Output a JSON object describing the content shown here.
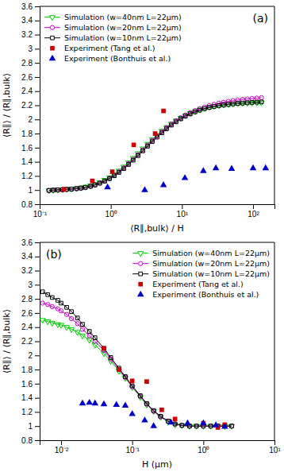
{
  "chart_data": [
    {
      "type": "line",
      "log": "x",
      "xlabel": "⟨R∥,bulk⟩ / H",
      "ylabel": "⟨R∥⟩ / ⟨R∥,bulk⟩",
      "annotations": [
        "(a)"
      ],
      "legend": "upper left",
      "xlim": [
        0.1,
        200
      ],
      "xticks": [
        {
          "value": 0.1,
          "label": "10⁻¹"
        },
        {
          "value": 1,
          "label": "10⁰"
        },
        {
          "value": 10,
          "label": "10¹"
        },
        {
          "value": 100,
          "label": "10²"
        }
      ],
      "ylim": [
        0.8,
        3.6
      ],
      "yticks": [
        0.8,
        1,
        1.2,
        1.4,
        1.6,
        1.8,
        2,
        2.2,
        2.4,
        2.6,
        2.8,
        3,
        3.2,
        3.4,
        3.6
      ],
      "series": [
        {
          "name": "Simulation (w=40nm L=22μm)",
          "type": "line",
          "marker": "triangle-down",
          "color": "#00cc00",
          "x": [
            0.135,
            0.155,
            0.18,
            0.21,
            0.24,
            0.28,
            0.33,
            0.38,
            0.44,
            0.52,
            0.6,
            0.7,
            0.82,
            0.96,
            1.12,
            1.3,
            1.52,
            1.78,
            2.06,
            2.42,
            2.82,
            3.29,
            3.83,
            4.47,
            5.22,
            6.08,
            7.09,
            8.27,
            9.64,
            11.2,
            13.1,
            15.3,
            17.8,
            20.8,
            24.2,
            28.3,
            33.0,
            38.5,
            44.9,
            52.3,
            61.0,
            71.1,
            82.9,
            96.7,
            113,
            131
          ],
          "values": [
            0.995,
            1.0,
            1.004,
            1.008,
            1.013,
            1.018,
            1.025,
            1.034,
            1.046,
            1.063,
            1.083,
            1.11,
            1.142,
            1.18,
            1.223,
            1.273,
            1.329,
            1.39,
            1.453,
            1.519,
            1.586,
            1.652,
            1.717,
            1.778,
            1.836,
            1.889,
            1.938,
            1.982,
            2.021,
            2.056,
            2.086,
            2.113,
            2.136,
            2.156,
            2.172,
            2.186,
            2.197,
            2.207,
            2.214,
            2.22,
            2.225,
            2.229,
            2.232,
            2.235,
            2.237,
            2.239
          ]
        },
        {
          "name": "Simulation (w=20nm L=22μm)",
          "type": "line",
          "marker": "circle",
          "color": "#cc00cc",
          "x": [
            0.135,
            0.155,
            0.18,
            0.21,
            0.24,
            0.28,
            0.33,
            0.38,
            0.44,
            0.52,
            0.6,
            0.7,
            0.82,
            0.96,
            1.12,
            1.3,
            1.52,
            1.78,
            2.06,
            2.42,
            2.82,
            3.29,
            3.83,
            4.47,
            5.22,
            6.08,
            7.09,
            8.27,
            9.64,
            11.2,
            13.1,
            15.3,
            17.8,
            20.8,
            24.2,
            28.3,
            33.0,
            38.5,
            44.9,
            52.3,
            61.0,
            71.1,
            82.9,
            96.7,
            113,
            131
          ],
          "values": [
            0.995,
            1.0,
            1.003,
            1.007,
            1.011,
            1.015,
            1.022,
            1.03,
            1.04,
            1.056,
            1.076,
            1.102,
            1.132,
            1.168,
            1.21,
            1.259,
            1.314,
            1.374,
            1.436,
            1.502,
            1.57,
            1.637,
            1.703,
            1.767,
            1.827,
            1.883,
            1.935,
            1.982,
            2.024,
            2.062,
            2.096,
            2.126,
            2.153,
            2.176,
            2.196,
            2.214,
            2.23,
            2.244,
            2.256,
            2.266,
            2.275,
            2.283,
            2.29,
            2.296,
            2.302,
            2.308
          ]
        },
        {
          "name": "Simulation (w=10nm L=22μm)",
          "type": "line",
          "marker": "square",
          "color": "#000000",
          "x": [
            0.135,
            0.155,
            0.18,
            0.21,
            0.24,
            0.28,
            0.33,
            0.38,
            0.44,
            0.52,
            0.6,
            0.7,
            0.82,
            0.96,
            1.12,
            1.3,
            1.52,
            1.78,
            2.06,
            2.42,
            2.82,
            3.29,
            3.83,
            4.47,
            5.22,
            6.08,
            7.09,
            8.27,
            9.64,
            11.2,
            13.1,
            15.3,
            17.8,
            20.8,
            24.2,
            28.3,
            33.0,
            38.5,
            44.9,
            52.3,
            61.0,
            71.1,
            82.9,
            96.7,
            113,
            131
          ],
          "values": [
            0.995,
            1.0,
            1.003,
            1.006,
            1.01,
            1.014,
            1.02,
            1.028,
            1.038,
            1.053,
            1.072,
            1.097,
            1.126,
            1.162,
            1.202,
            1.25,
            1.303,
            1.362,
            1.423,
            1.488,
            1.555,
            1.621,
            1.686,
            1.749,
            1.81,
            1.867,
            1.919,
            1.966,
            2.008,
            2.046,
            2.079,
            2.107,
            2.131,
            2.152,
            2.169,
            2.183,
            2.195,
            2.205,
            2.213,
            2.22,
            2.226,
            2.231,
            2.236,
            2.24,
            2.244,
            2.248
          ]
        },
        {
          "name": "Experiment (Tang et al.)",
          "type": "scatter",
          "marker": "square",
          "color": "#cc0000",
          "x": [
            0.22,
            0.55,
            1.05,
            2.1,
            4.2,
            5.5
          ],
          "values": [
            1.01,
            1.13,
            1.26,
            1.64,
            1.8,
            2.12
          ]
        },
        {
          "name": "Experiment (Bonthuis et al.)",
          "type": "scatter",
          "marker": "triangle-up",
          "color": "#0000cc",
          "x": [
            0.9,
            3.0,
            5.5,
            11.0,
            20.0,
            30.0,
            50.0,
            100.0,
            150.0
          ],
          "values": [
            1.04,
            1.0,
            1.07,
            1.17,
            1.27,
            1.31,
            1.3,
            1.31,
            1.31
          ]
        }
      ]
    },
    {
      "type": "line",
      "log": "x",
      "xlabel": "H (μm)",
      "ylabel": "⟨R∥⟩ / ⟨R∥,bulk⟩",
      "annotations": [
        "(b)"
      ],
      "legend": "upper right",
      "xlim": [
        0.005,
        10
      ],
      "xticks": [
        {
          "value": 0.01,
          "label": "10⁻²"
        },
        {
          "value": 0.1,
          "label": "10⁻¹"
        },
        {
          "value": 1,
          "label": "10⁰"
        },
        {
          "value": 10,
          "label": "10¹"
        }
      ],
      "ylim": [
        0.8,
        3.6
      ],
      "yticks": [
        0.8,
        1,
        1.2,
        1.4,
        1.6,
        1.8,
        2,
        2.2,
        2.4,
        2.6,
        2.8,
        3,
        3.2,
        3.4,
        3.6
      ],
      "series": [
        {
          "name": "Simulation (w=40nm L=22μm)",
          "type": "line",
          "marker": "triangle-down",
          "color": "#00cc00",
          "x": [
            0.0055,
            0.0065,
            0.0075,
            0.009,
            0.01,
            0.012,
            0.014,
            0.017,
            0.02,
            0.025,
            0.03,
            0.04,
            0.05,
            0.065,
            0.08,
            0.1,
            0.13,
            0.16,
            0.2,
            0.25,
            0.32,
            0.4,
            0.5,
            0.64,
            0.8,
            1.0,
            1.27,
            1.6,
            2.0,
            2.5
          ],
          "values": [
            2.5,
            2.48,
            2.46,
            2.44,
            2.43,
            2.4,
            2.37,
            2.33,
            2.28,
            2.22,
            2.15,
            2.03,
            1.92,
            1.78,
            1.68,
            1.55,
            1.41,
            1.3,
            1.21,
            1.13,
            1.06,
            1.02,
            1.01,
            1.0,
            1.0,
            1.0,
            1.0,
            1.0,
            1.0,
            1.0
          ]
        },
        {
          "name": "Simulation (w=20nm L=22μm)",
          "type": "line",
          "marker": "circle",
          "color": "#cc00cc",
          "x": [
            0.0055,
            0.0065,
            0.0075,
            0.009,
            0.01,
            0.012,
            0.014,
            0.017,
            0.02,
            0.025,
            0.03,
            0.04,
            0.05,
            0.065,
            0.08,
            0.1,
            0.13,
            0.16,
            0.2,
            0.25,
            0.32,
            0.4,
            0.5,
            0.64,
            0.8,
            1.0,
            1.27,
            1.6,
            2.0,
            2.5
          ],
          "values": [
            2.74,
            2.72,
            2.69,
            2.66,
            2.63,
            2.58,
            2.52,
            2.45,
            2.37,
            2.28,
            2.2,
            2.07,
            1.95,
            1.8,
            1.69,
            1.56,
            1.42,
            1.31,
            1.21,
            1.13,
            1.07,
            1.03,
            1.01,
            1.0,
            1.0,
            1.0,
            1.0,
            1.0,
            1.0,
            1.0
          ]
        },
        {
          "name": "Simulation (w=10nm L=22μm)",
          "type": "line",
          "marker": "square",
          "color": "#000000",
          "x": [
            0.0055,
            0.0065,
            0.0075,
            0.009,
            0.01,
            0.012,
            0.014,
            0.017,
            0.02,
            0.025,
            0.03,
            0.04,
            0.05,
            0.065,
            0.08,
            0.1,
            0.13,
            0.16,
            0.2,
            0.25,
            0.32,
            0.4,
            0.5,
            0.64,
            0.8,
            1.0,
            1.27,
            1.6,
            2.0,
            2.5
          ],
          "values": [
            2.9,
            2.86,
            2.82,
            2.78,
            2.74,
            2.68,
            2.62,
            2.53,
            2.44,
            2.34,
            2.25,
            2.1,
            1.97,
            1.82,
            1.7,
            1.57,
            1.43,
            1.32,
            1.22,
            1.14,
            1.07,
            1.03,
            1.01,
            1.0,
            1.0,
            1.0,
            1.0,
            1.0,
            1.0,
            1.0
          ]
        },
        {
          "name": "Experiment (Tang et al.)",
          "type": "scatter",
          "marker": "square",
          "color": "#cc0000",
          "x": [
            0.04,
            0.065,
            0.1,
            0.16,
            0.26,
            0.4,
            1.0,
            1.6,
            2.0
          ],
          "values": [
            2.1,
            1.8,
            1.64,
            1.63,
            1.23,
            1.1,
            1.04,
            0.98,
            1.02
          ]
        },
        {
          "name": "Experiment (Bonthuis et al.)",
          "type": "scatter",
          "marker": "triangle-up",
          "color": "#0000cc",
          "x": [
            0.02,
            0.025,
            0.03,
            0.04,
            0.06,
            0.08,
            0.1,
            0.15,
            0.2,
            0.35,
            0.6,
            1.0,
            1.5,
            2.0
          ],
          "values": [
            1.32,
            1.33,
            1.32,
            1.31,
            1.3,
            1.29,
            1.17,
            1.08,
            1.0,
            1.05,
            1.04,
            1.04,
            1.01,
            0.99
          ]
        }
      ]
    }
  ]
}
